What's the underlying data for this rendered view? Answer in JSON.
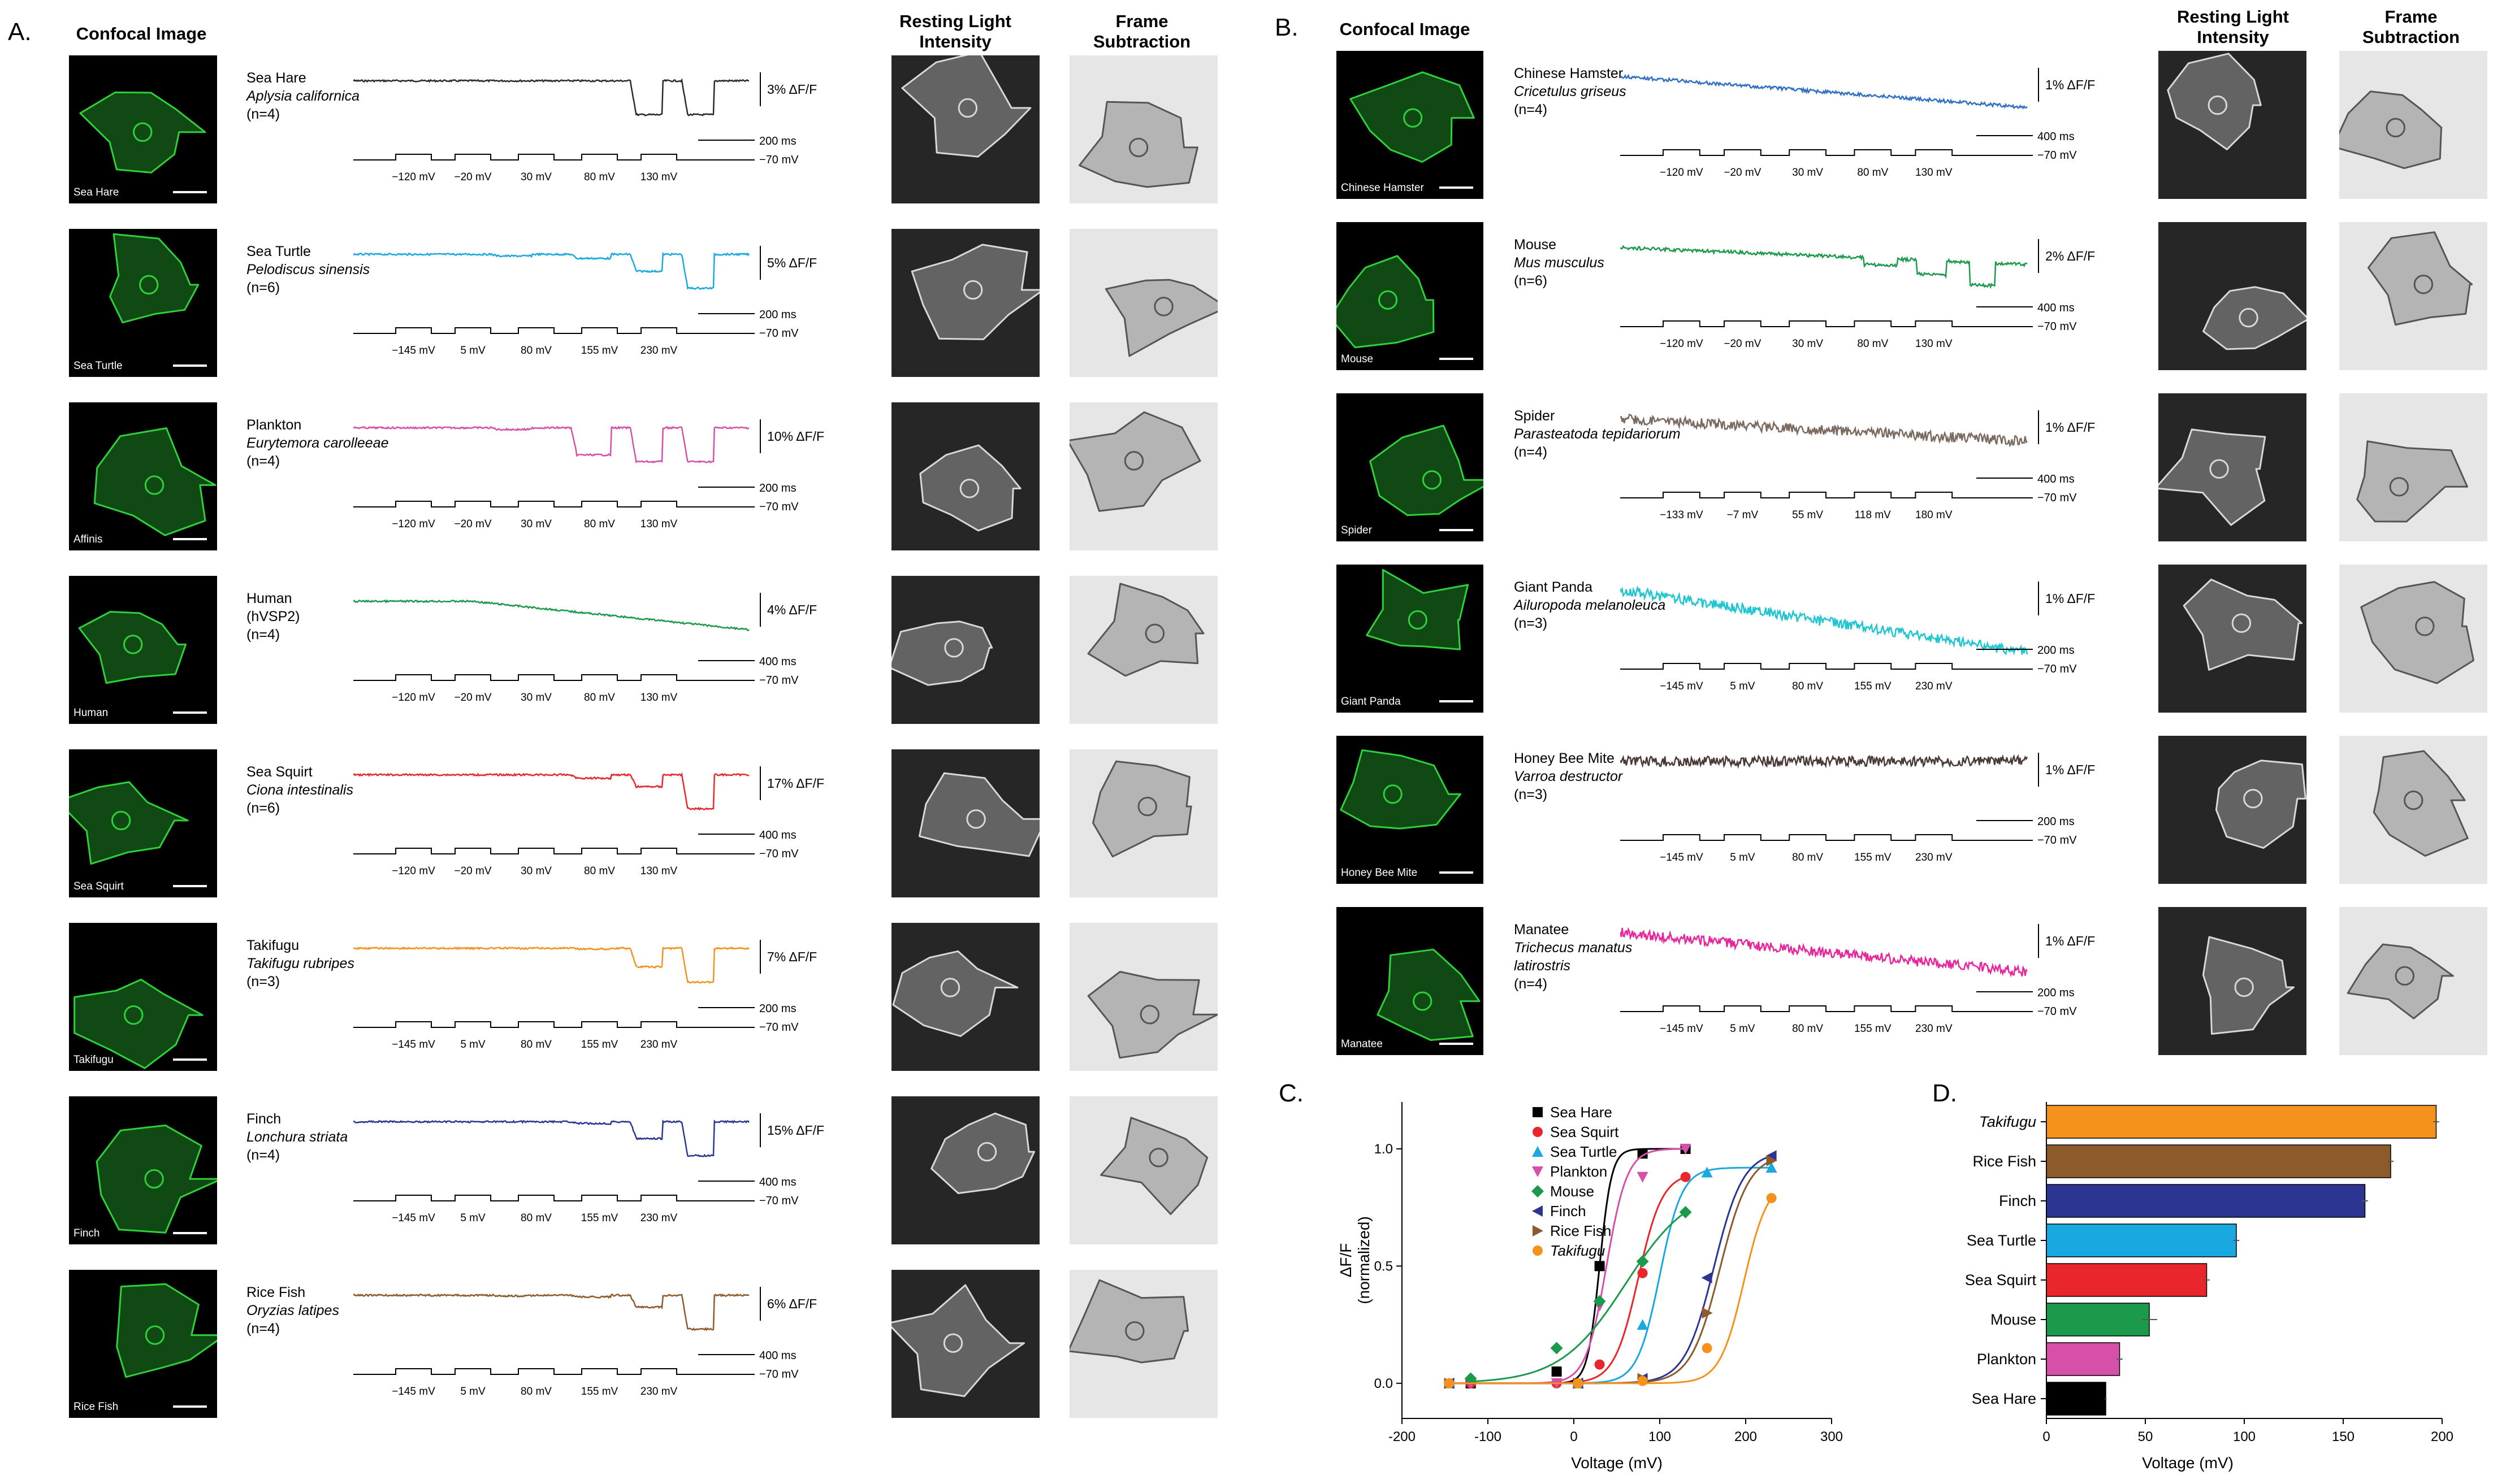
{
  "panels": {
    "a": {
      "letter": "A.",
      "confocal_header": "Confocal Image",
      "resting_header": [
        "Resting Light",
        "Intensity"
      ],
      "frame_header": [
        "Frame",
        "Subtraction"
      ],
      "rows": [
        {
          "label": "Sea Hare",
          "common": "Sea Hare",
          "latin": "Aplysia californica",
          "n": "(n=4)",
          "scale": "3% ΔF/F",
          "time": "200 ms",
          "hold": "−70 mV",
          "volts": [
            "−120 mV",
            "−20 mV",
            "30 mV",
            "80 mV",
            "130 mV"
          ],
          "color": "#2a2a2a",
          "profile": [
            0,
            0,
            0,
            0,
            1,
            1,
            0.95
          ]
        },
        {
          "label": "Sea Turtle",
          "common": "Sea Turtle",
          "latin": "Pelodiscus sinensis",
          "n": "(n=6)",
          "scale": "5% ΔF/F",
          "time": "200 ms",
          "hold": "−70 mV",
          "volts": [
            "−145 mV",
            "5 mV",
            "80 mV",
            "155 mV",
            "230 mV"
          ],
          "color": "#1aa8e0",
          "profile": [
            0,
            0,
            0.05,
            0.12,
            0.5,
            1,
            0.2
          ]
        },
        {
          "label": "Affinis",
          "common": "Plankton",
          "latin": "Eurytemora carolleeae",
          "n": "(n=4)",
          "scale": "10% ΔF/F",
          "time": "200 ms",
          "hold": "−70 mV",
          "volts": [
            "−120 mV",
            "−20 mV",
            "30 mV",
            "80 mV",
            "130 mV"
          ],
          "color": "#d64fa8",
          "profile": [
            0,
            0,
            0.05,
            0.8,
            1,
            1,
            0.1
          ]
        },
        {
          "label": "Human",
          "common": "Human",
          "latin": "(hVSP2)",
          "latin_italic": false,
          "n": "(n=4)",
          "scale": "4% ΔF/F",
          "time": "400 ms",
          "hold": "−70 mV",
          "volts": [
            "−120 mV",
            "−20 mV",
            "30 mV",
            "80 mV",
            "130 mV"
          ],
          "color": "#1a9a4a",
          "profile": [
            0,
            0.1,
            0.2,
            0.5,
            0.8,
            1,
            0.4
          ]
        },
        {
          "label": "Sea Squirt",
          "common": "Sea Squirt",
          "latin": "Ciona intestinalis",
          "n": "(n=6)",
          "scale": "17% ΔF/F",
          "time": "400 ms",
          "hold": "−70 mV",
          "volts": [
            "−120 mV",
            "−20 mV",
            "30 mV",
            "80 mV",
            "130 mV"
          ],
          "color": "#e8262b",
          "profile": [
            0,
            0,
            0,
            0.1,
            0.35,
            1,
            0.1
          ]
        },
        {
          "label": "Takifugu",
          "common": "Takifugu",
          "latin": "Takifugu rubripes",
          "n": "(n=3)",
          "scale": "7% ΔF/F",
          "time": "200 ms",
          "hold": "−70 mV",
          "volts": [
            "−145 mV",
            "5 mV",
            "80 mV",
            "155 mV",
            "230 mV"
          ],
          "color": "#f5921e",
          "profile": [
            0,
            0,
            0,
            0.02,
            0.55,
            1,
            0.05
          ]
        },
        {
          "label": "Finch",
          "common": "Finch",
          "latin": "Lonchura striata",
          "n": "(n=4)",
          "scale": "15% ΔF/F",
          "time": "400 ms",
          "hold": "−70 mV",
          "volts": [
            "−145 mV",
            "5 mV",
            "80 mV",
            "155 mV",
            "230 mV"
          ],
          "color": "#2c3592",
          "profile": [
            0,
            0,
            0,
            0.05,
            0.5,
            1,
            0.05
          ]
        },
        {
          "label": "Rice Fish",
          "common": "Rice Fish",
          "latin": "Oryzias latipes",
          "n": "(n=4)",
          "scale": "6% ΔF/F",
          "time": "400 ms",
          "hold": "−70 mV",
          "volts": [
            "−145 mV",
            "5 mV",
            "80 mV",
            "155 mV",
            "230 mV"
          ],
          "color": "#8c5a2b",
          "profile": [
            0,
            0,
            0.02,
            0.05,
            0.35,
            1,
            0.1
          ]
        }
      ]
    },
    "b": {
      "letter": "B.",
      "confocal_header": "Confocal Image",
      "resting_header": [
        "Resting Light",
        "Intensity"
      ],
      "frame_header": [
        "Frame",
        "Subtraction"
      ],
      "rows": [
        {
          "label": "Chinese Hamster",
          "common": "Chinese Hamster",
          "latin": "Cricetulus griseus",
          "n": "(n=4)",
          "scale": "1% ΔF/F",
          "time": "400 ms",
          "hold": "−70 mV",
          "volts": [
            "−120 mV",
            "−20 mV",
            "30 mV",
            "80 mV",
            "130 mV"
          ],
          "color": "#2f6fc4"
        },
        {
          "label": "Mouse",
          "common": "Mouse",
          "latin": "Mus musculus",
          "n": "(n=6)",
          "scale": "2% ΔF/F",
          "time": "400 ms",
          "hold": "−70 mV",
          "volts": [
            "−120 mV",
            "−20 mV",
            "30 mV",
            "80 mV",
            "130 mV"
          ],
          "color": "#1a9a4a"
        },
        {
          "label": "Spider",
          "common": "Spider",
          "latin": "Parasteatoda tepidariorum",
          "n": "(n=4)",
          "scale": "1% ΔF/F",
          "time": "400 ms",
          "hold": "−70 mV",
          "volts": [
            "−133 mV",
            "−7 mV",
            "55 mV",
            "118 mV",
            "180 mV"
          ],
          "color": "#7a6a60"
        },
        {
          "label": "Giant Panda",
          "common": "Giant Panda",
          "latin": "Ailuropoda melanoleuca",
          "n": "(n=3)",
          "scale": "1% ΔF/F",
          "time": "200 ms",
          "hold": "−70 mV",
          "volts": [
            "−145 mV",
            "5 mV",
            "80 mV",
            "155 mV",
            "230 mV"
          ],
          "color": "#1ec6d2"
        },
        {
          "label": "Honey Bee Mite",
          "common": "Honey Bee Mite",
          "latin": "Varroa destructor",
          "n": "(n=3)",
          "scale": "1% ΔF/F",
          "time": "200 ms",
          "hold": "−70 mV",
          "volts": [
            "−145 mV",
            "5 mV",
            "80 mV",
            "155 mV",
            "230 mV"
          ],
          "color": "#4a3a36"
        },
        {
          "label": "Manatee",
          "common": "Manatee",
          "latin": "Trichecus manatus latirostris",
          "n": "(n=4)",
          "scale": "1% ΔF/F",
          "time": "200 ms",
          "hold": "−70 mV",
          "volts": [
            "−145 mV",
            "5 mV",
            "80 mV",
            "155 mV",
            "230 mV"
          ],
          "color": "#e8259a"
        }
      ]
    },
    "c_letter": "C.",
    "d_letter": "D."
  },
  "chart_data": [
    {
      "type": "line",
      "panel": "C",
      "xlabel": "Voltage (mV)",
      "ylabel": [
        "ΔF/F",
        "(normalized)"
      ],
      "xlim": [
        -200,
        300
      ],
      "ylim": [
        -0.15,
        1.2
      ],
      "xticks": [
        "-200",
        "-100",
        "0",
        "100",
        "200",
        "300"
      ],
      "yticks": [
        "0.0",
        "0.5",
        "1.0"
      ],
      "series": [
        {
          "name": "Sea Hare",
          "color": "#000000",
          "marker": "square",
          "italic": false,
          "v_half": 30,
          "slope": 7,
          "x": [
            -120,
            -20,
            30,
            80,
            130
          ],
          "y": [
            0.0,
            0.05,
            0.5,
            0.98,
            1.0
          ]
        },
        {
          "name": "Sea Squirt",
          "color": "#e8262b",
          "marker": "circle",
          "italic": false,
          "v_half": 75,
          "slope": 14,
          "x": [
            -120,
            -20,
            30,
            80,
            130
          ],
          "y": [
            0.0,
            0.0,
            0.08,
            0.47,
            0.88
          ]
        },
        {
          "name": "Sea Turtle",
          "color": "#1aa8e0",
          "marker": "triangle-up",
          "italic": false,
          "v_half": 100,
          "slope": 13,
          "x": [
            -145,
            5,
            80,
            155,
            230
          ],
          "y": [
            0.0,
            0.0,
            0.25,
            0.9,
            0.92
          ]
        },
        {
          "name": "Plankton",
          "color": "#d64fa8",
          "marker": "triangle-down",
          "italic": false,
          "v_half": 38,
          "slope": 12,
          "x": [
            -120,
            -20,
            30,
            80,
            130
          ],
          "y": [
            0.0,
            0.0,
            0.33,
            0.88,
            1.0
          ]
        },
        {
          "name": "Mouse",
          "color": "#1a9a4a",
          "marker": "diamond",
          "italic": false,
          "v_half": 60,
          "slope": 38,
          "x": [
            -120,
            -20,
            30,
            80,
            130
          ],
          "y": [
            0.02,
            0.15,
            0.35,
            0.52,
            0.73
          ]
        },
        {
          "name": "Finch",
          "color": "#2c3592",
          "marker": "triangle-left",
          "italic": false,
          "v_half": 163,
          "slope": 17,
          "x": [
            -145,
            5,
            80,
            155,
            230
          ],
          "y": [
            0.0,
            0.0,
            0.02,
            0.45,
            0.97
          ]
        },
        {
          "name": "Rice Fish",
          "color": "#8c5a2b",
          "marker": "triangle-right",
          "italic": false,
          "v_half": 170,
          "slope": 17,
          "x": [
            -145,
            5,
            80,
            155,
            230
          ],
          "y": [
            0.0,
            0.0,
            0.02,
            0.3,
            0.95
          ]
        },
        {
          "name": "Takifugu",
          "color": "#f5921e",
          "marker": "circle",
          "italic": true,
          "v_half": 198,
          "slope": 14,
          "x": [
            -145,
            5,
            80,
            155,
            230
          ],
          "y": [
            0.0,
            0.0,
            0.01,
            0.15,
            0.79
          ]
        }
      ]
    },
    {
      "type": "bar",
      "orientation": "horizontal",
      "panel": "D",
      "xlabel": "Voltage (mV)",
      "xlim": [
        0,
        200
      ],
      "xticks": [
        "0",
        "50",
        "100",
        "150",
        "200"
      ],
      "categories": [
        "Takifugu",
        "Rice Fish",
        "Finch",
        "Sea Turtle",
        "Sea Squirt",
        "Mouse",
        "Plankton",
        "Sea Hare"
      ],
      "italic": [
        true,
        false,
        false,
        false,
        false,
        false,
        false,
        false
      ],
      "values": [
        197,
        174,
        161,
        96,
        81,
        52,
        37,
        30
      ],
      "errors": [
        1.5,
        1.5,
        1.5,
        1.5,
        1.5,
        4,
        1.5,
        0.5
      ],
      "colors": [
        "#f5921e",
        "#8c5a2b",
        "#2c3592",
        "#1aa8e0",
        "#e8262b",
        "#1a9a4a",
        "#d64fa8",
        "#000000"
      ]
    }
  ]
}
